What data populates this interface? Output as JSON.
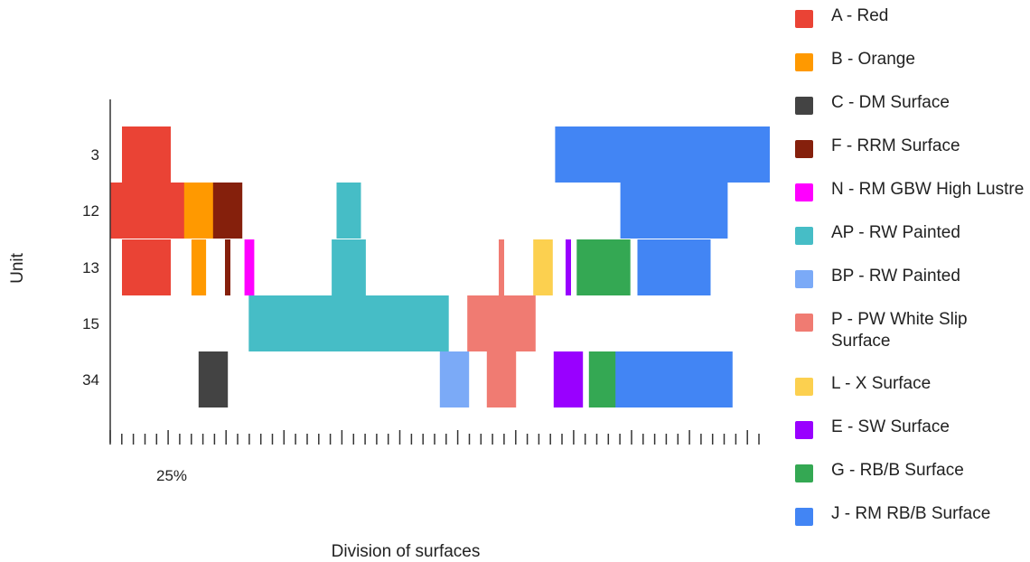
{
  "chart_data": {
    "type": "bar",
    "xlabel": "Division of surfaces",
    "ylabel": "Unit",
    "x_tick_label": "25%",
    "categories": [
      "3",
      "12",
      "13",
      "15",
      "34"
    ],
    "grid": false,
    "legend_position": "right",
    "series": [
      {
        "name": "A - Red",
        "color": "#ea4335",
        "values": [
          1,
          1.6,
          1,
          0,
          0
        ]
      },
      {
        "name": "B - Orange",
        "color": "#ff9900",
        "values": [
          0,
          0.6,
          0.3,
          0,
          0
        ]
      },
      {
        "name": "C - DM Surface",
        "color": "#434343",
        "values": [
          0,
          0,
          0,
          0,
          0.6
        ]
      },
      {
        "name": "F - RRM Surface",
        "color": "#85200c",
        "values": [
          0,
          0.6,
          0.1,
          0,
          0
        ]
      },
      {
        "name": "N - RM GBW High Lustre",
        "color": "#ff00ff",
        "values": [
          0,
          0,
          0.2,
          0,
          0
        ]
      },
      {
        "name": "AP - RW Painted",
        "color": "#46bdc6",
        "values": [
          0,
          0.5,
          0.7,
          4.1,
          0
        ]
      },
      {
        "name": "BP - RW Painted",
        "color": "#7baaf7",
        "values": [
          0,
          0,
          0,
          0,
          0.6
        ]
      },
      {
        "name": "P - PW White Slip Surface",
        "color": "#f07b72",
        "values": [
          0,
          0,
          0.1,
          1.4,
          0.6
        ]
      },
      {
        "name": "L - X Surface",
        "color": "#fcd04f",
        "values": [
          0,
          0,
          0.4,
          0,
          0
        ]
      },
      {
        "name": "E - SW Surface",
        "color": "#9900ff",
        "values": [
          0,
          0,
          0.1,
          0,
          0.6
        ]
      },
      {
        "name": "G - RB/B Surface",
        "color": "#34a853",
        "values": [
          0,
          0,
          1.1,
          0,
          0.6
        ]
      },
      {
        "name": "J - RM RB/B Surface",
        "color": "#4285f4",
        "values": [
          4.4,
          2.2,
          1.5,
          0,
          2.4
        ]
      }
    ]
  }
}
